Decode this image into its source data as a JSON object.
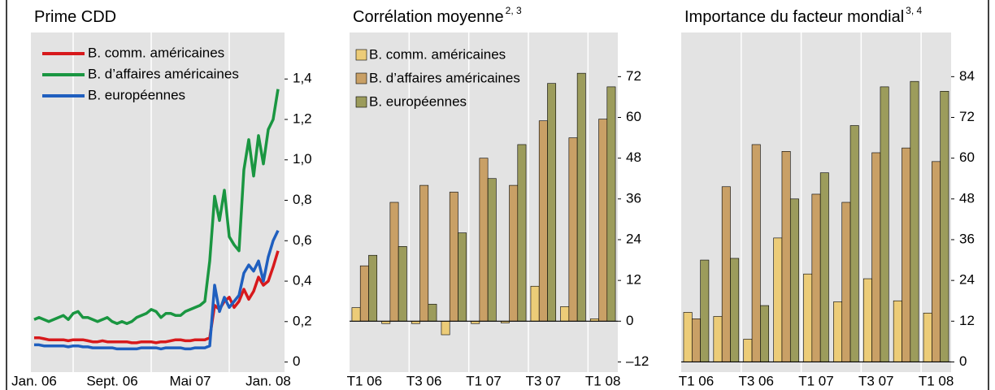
{
  "chart_data": [
    {
      "type": "line",
      "title": "Prime CDD",
      "categories": [
        "Jan. 06",
        null,
        null,
        null,
        null,
        null,
        null,
        null,
        null,
        null,
        null,
        null,
        null,
        null,
        null,
        null,
        "Sept. 06",
        null,
        null,
        null,
        null,
        null,
        null,
        null,
        null,
        null,
        null,
        null,
        null,
        null,
        null,
        null,
        "Mai 07",
        null,
        null,
        null,
        null,
        null,
        null,
        null,
        null,
        null,
        null,
        null,
        null,
        null,
        null,
        null,
        "Jan. 08",
        null,
        null
      ],
      "series": [
        {
          "name": "B. comm. américaines",
          "color": "#d7191c",
          "values": [
            0.12,
            0.12,
            0.115,
            0.11,
            0.11,
            0.11,
            0.11,
            0.105,
            0.11,
            0.11,
            0.11,
            0.105,
            0.1,
            0.1,
            0.105,
            0.1,
            0.1,
            0.1,
            0.1,
            0.1,
            0.095,
            0.095,
            0.1,
            0.1,
            0.1,
            0.095,
            0.1,
            0.1,
            0.105,
            0.11,
            0.11,
            0.105,
            0.105,
            0.11,
            0.11,
            0.11,
            0.12,
            0.28,
            0.26,
            0.3,
            0.32,
            0.27,
            0.3,
            0.36,
            0.31,
            0.35,
            0.42,
            0.38,
            0.4,
            0.47,
            0.55
          ]
        },
        {
          "name": "B. d’affaires américaines",
          "color": "#1a9641",
          "values": [
            0.21,
            0.22,
            0.21,
            0.2,
            0.21,
            0.22,
            0.23,
            0.21,
            0.24,
            0.25,
            0.22,
            0.22,
            0.21,
            0.2,
            0.21,
            0.22,
            0.2,
            0.19,
            0.2,
            0.19,
            0.2,
            0.22,
            0.23,
            0.24,
            0.26,
            0.25,
            0.22,
            0.24,
            0.24,
            0.23,
            0.23,
            0.25,
            0.26,
            0.27,
            0.28,
            0.3,
            0.5,
            0.82,
            0.7,
            0.85,
            0.62,
            0.58,
            0.55,
            0.95,
            1.1,
            0.92,
            1.12,
            0.98,
            1.15,
            1.2,
            1.35
          ]
        },
        {
          "name": "B. européennes",
          "color": "#1f5fbf",
          "values": [
            0.085,
            0.085,
            0.08,
            0.08,
            0.08,
            0.08,
            0.08,
            0.075,
            0.08,
            0.08,
            0.075,
            0.075,
            0.07,
            0.07,
            0.07,
            0.07,
            0.07,
            0.065,
            0.065,
            0.065,
            0.065,
            0.065,
            0.07,
            0.07,
            0.07,
            0.07,
            0.065,
            0.07,
            0.07,
            0.07,
            0.07,
            0.065,
            0.065,
            0.07,
            0.07,
            0.07,
            0.08,
            0.38,
            0.25,
            0.32,
            0.27,
            0.3,
            0.33,
            0.44,
            0.48,
            0.45,
            0.5,
            0.4,
            0.52,
            0.6,
            0.65
          ]
        }
      ],
      "ylim": [
        -0.05,
        1.63
      ],
      "yticks": [
        0,
        {
          "value": 0.2,
          "label": "0,2"
        },
        {
          "value": 0.4,
          "label": "0,4"
        },
        {
          "value": 0.6,
          "label": "0,6"
        },
        {
          "value": 0.8,
          "label": "0,8"
        },
        {
          "value": 1.0,
          "label": "1,0"
        },
        {
          "value": 1.2,
          "label": "1,2"
        },
        {
          "value": 1.4,
          "label": "1,4"
        }
      ],
      "legend": "upper left"
    },
    {
      "type": "bar",
      "title": "Corrélation moyenne",
      "title_note": "2, 3",
      "categories": [
        "T1 06",
        null,
        "T3 06",
        null,
        "T1 07",
        null,
        "T3 07",
        null,
        "T1 08"
      ],
      "series": [
        {
          "name": "B. comm. américaines",
          "color": "#eccc78",
          "values": [
            4,
            -0.7,
            -0.7,
            -4,
            -0.7,
            -0.5,
            10.3,
            4.3,
            0.7
          ]
        },
        {
          "name": "B. d’affaires américaines",
          "color": "#c9a066",
          "values": [
            16.3,
            35,
            40,
            38,
            48,
            40,
            59,
            54,
            59.5
          ]
        },
        {
          "name": "B. européennes",
          "color": "#9c9c5c",
          "values": [
            19.4,
            22,
            5,
            26,
            42,
            52,
            70,
            73,
            69
          ]
        }
      ],
      "ylim": [
        -15,
        85
      ],
      "yticks": [
        {
          "value": -12,
          "label": "–12"
        },
        0,
        12,
        24,
        36,
        48,
        60,
        72
      ],
      "legend": "upper left"
    },
    {
      "type": "bar",
      "title": "Importance du facteur mondial",
      "title_note": "3, 4",
      "categories": [
        "T1 06",
        null,
        "T3 06",
        null,
        "T1 07",
        null,
        "T3 07",
        null,
        "T1 08"
      ],
      "series": [
        {
          "name": "B. comm. américaines",
          "color": "#eccc78",
          "values": [
            14.6,
            13.4,
            6.7,
            36.5,
            25.9,
            17.7,
            24.5,
            18,
            14.4
          ]
        },
        {
          "name": "B. d’affaires américaines",
          "color": "#c9a066",
          "values": [
            12.7,
            51.6,
            64,
            62,
            49.4,
            47,
            61.6,
            63,
            59
          ]
        },
        {
          "name": "B. européennes",
          "color": "#9c9c5c",
          "values": [
            30,
            30.5,
            16.6,
            48,
            55.7,
            69.6,
            81,
            82.6,
            79.7
          ]
        }
      ],
      "ylim": [
        -3,
        97
      ],
      "yticks": [
        0,
        12,
        24,
        36,
        48,
        60,
        72,
        84
      ]
    }
  ]
}
